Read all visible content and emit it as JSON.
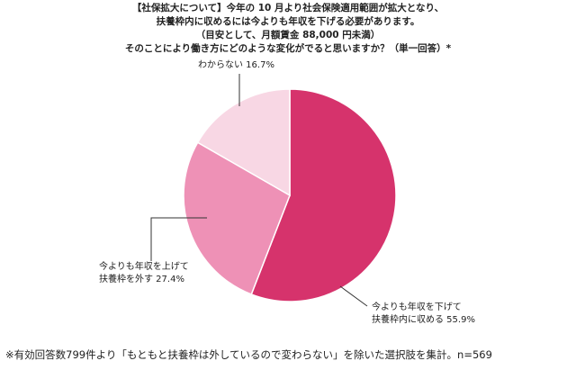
{
  "chart_data": {
    "type": "pie",
    "title_lines": [
      "【社保拡大について】今年の 10 月より社会保険適用範囲が拡大となり、",
      "扶養枠内に収めるには今よりも年収を下げる必要があります。",
      "（目安として、月額賃金 88,000 円未満）",
      "そのことにより働き方にどのような変化がでると思いますか？（単一回答）*"
    ],
    "slices": [
      {
        "label_lines": [
          "今よりも年収を下げて",
          "扶養枠内に収める 55.9%"
        ],
        "value": 55.9,
        "color": "#d6336c"
      },
      {
        "label_lines": [
          "今よりも年収を上げて",
          "扶養枠を外す 27.4%"
        ],
        "value": 27.4,
        "color": "#ee91b6"
      },
      {
        "label_lines": [
          "わからない 16.7%"
        ],
        "value": 16.7,
        "color": "#f8d7e4"
      }
    ],
    "footnote": "※有効回答数799件より「もともと扶養枠は外しているので変わらない」を除いた選択肢を集計。n=569"
  }
}
